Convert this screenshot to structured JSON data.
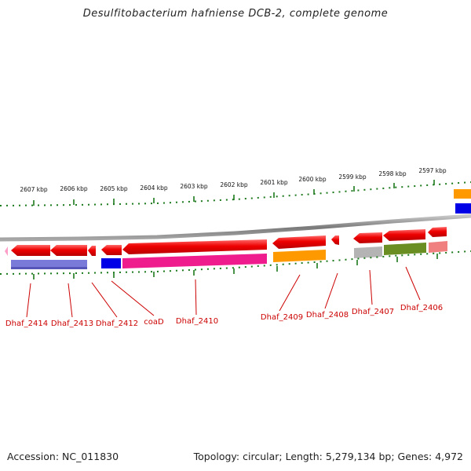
{
  "title": "Desulfitobacterium hafniense DCB-2, complete genome",
  "footer": {
    "accession": "Accession: NC_011830",
    "summary": "Topology: circular; Length: 5,279,134 bp; Genes: 4,972"
  },
  "scale_labels": [
    "2607 kbp",
    "2606 kbp",
    "2605 kbp",
    "2604 kbp",
    "2603 kbp",
    "2602 kbp",
    "2601 kbp",
    "2600 kbp",
    "2599 kbp",
    "2598 kbp",
    "2597 kbp"
  ],
  "gene_labels": [
    "Dhaf_2414",
    "Dhaf_2413",
    "Dhaf_2412",
    "coaD",
    "Dhaf_2410",
    "Dhaf_2409",
    "Dhaf_2408",
    "Dhaf_2407",
    "Dhaf_2406"
  ],
  "colors": {
    "cds": "#e8000b",
    "backbone": "#8a8a8a",
    "tick": "#1c7a1c",
    "label": "#cc0000"
  }
}
